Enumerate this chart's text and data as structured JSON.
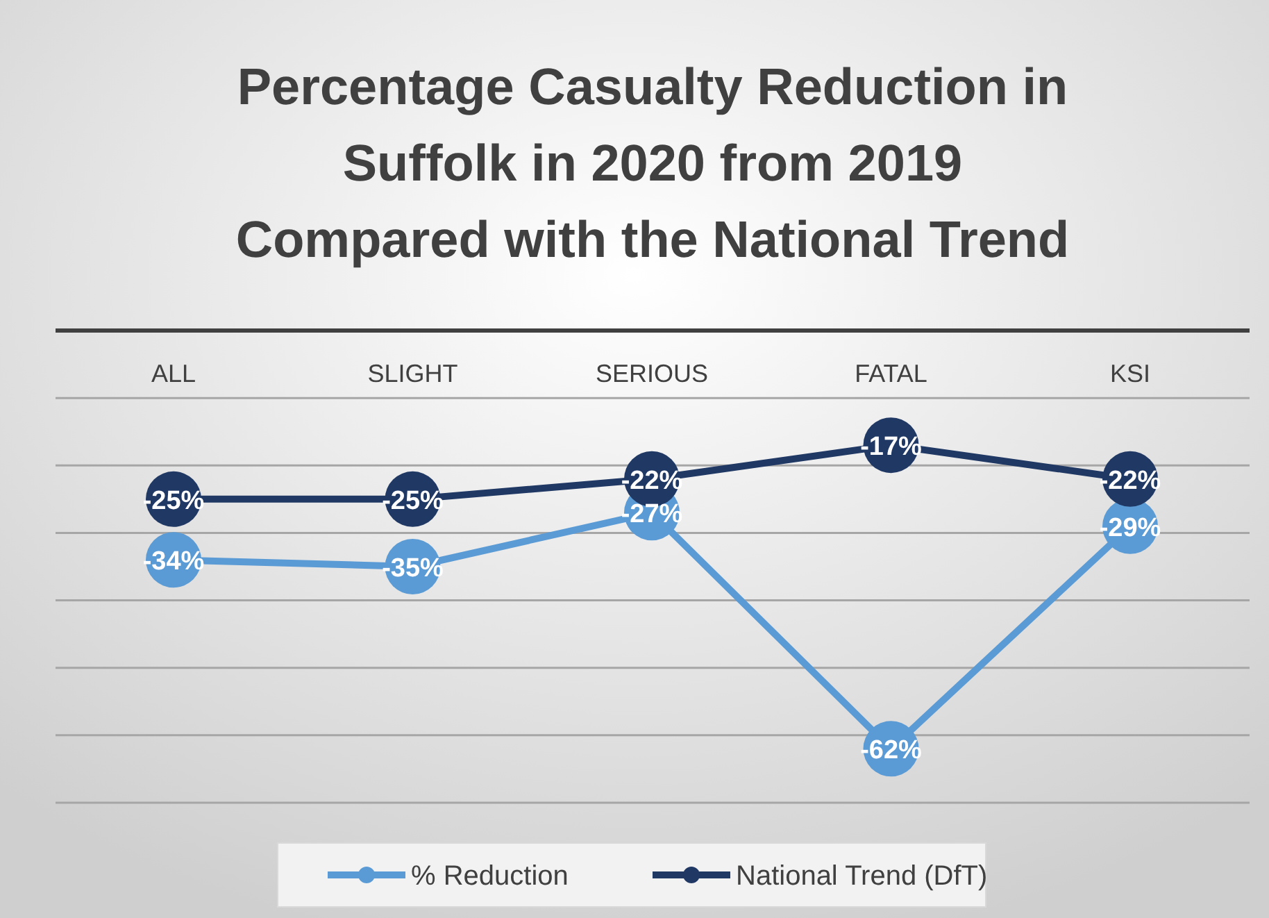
{
  "chart_data": {
    "type": "line",
    "title": "Percentage Casualty Reduction in Suffolk in 2020 from 2019 Compared with the National Trend",
    "categories": [
      "ALL",
      "SLIGHT",
      "SERIOUS",
      "FATAL",
      "KSI"
    ],
    "series": [
      {
        "name": "% Reduction",
        "color": "#5b9bd5",
        "values": [
          -34,
          -35,
          -27,
          -62,
          -29
        ],
        "value_labels": [
          "-34%",
          "-35%",
          "-27%",
          "-62%",
          "-29%"
        ]
      },
      {
        "name": "National Trend (DfT)",
        "color": "#203864",
        "values": [
          -25,
          -25,
          -22,
          -17,
          -22
        ],
        "value_labels": [
          "-25%",
          "-25%",
          "-22%",
          "-17%",
          "-22%"
        ]
      }
    ],
    "ylim": [
      -70,
      0
    ],
    "yticks": [
      {
        "value": -70,
        "label": null
      },
      {
        "value": -60,
        "label": null
      },
      {
        "value": -50,
        "label": null
      },
      {
        "value": -40,
        "label": null
      },
      {
        "value": -30,
        "label": null
      },
      {
        "value": -20,
        "label": null
      },
      {
        "value": -10,
        "label": null
      },
      {
        "value": 0,
        "label": null
      }
    ],
    "tick_labels": "x",
    "grid": "y",
    "legend": "bottom",
    "marker": "circle",
    "line_style": "solid"
  }
}
